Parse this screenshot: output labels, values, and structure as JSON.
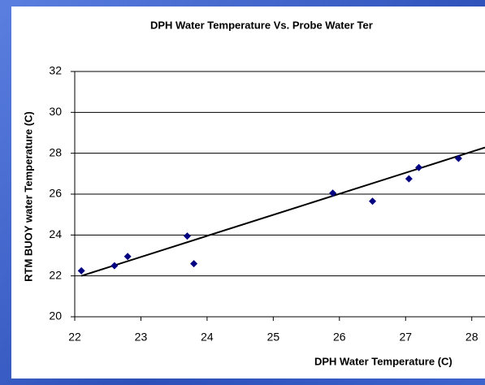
{
  "chart_data": {
    "type": "scatter",
    "title": "DPH Water Temperature Vs. Probe Water Ter",
    "x_label": "DPH Water Temperature (C)",
    "y_label": "RTM BUOY water Temperature (C)",
    "x": [
      22.1,
      22.6,
      22.8,
      23.7,
      23.8,
      25.9,
      26.5,
      27.05,
      27.2,
      27.8
    ],
    "y": [
      22.25,
      22.5,
      22.95,
      23.95,
      22.6,
      26.05,
      25.65,
      26.75,
      27.3,
      27.75
    ],
    "color": "#000080",
    "trendline": {
      "x": [
        22.1,
        28.2
      ],
      "y": [
        22.0,
        28.28
      ],
      "color": "#000000"
    },
    "xlim": [
      22,
      28.2
    ],
    "xticks": [
      22,
      23,
      24,
      25,
      26,
      27,
      28
    ],
    "ylim": [
      20,
      32
    ],
    "yticks": [
      20,
      22,
      24,
      26,
      28,
      30,
      32
    ],
    "grid": true
  }
}
